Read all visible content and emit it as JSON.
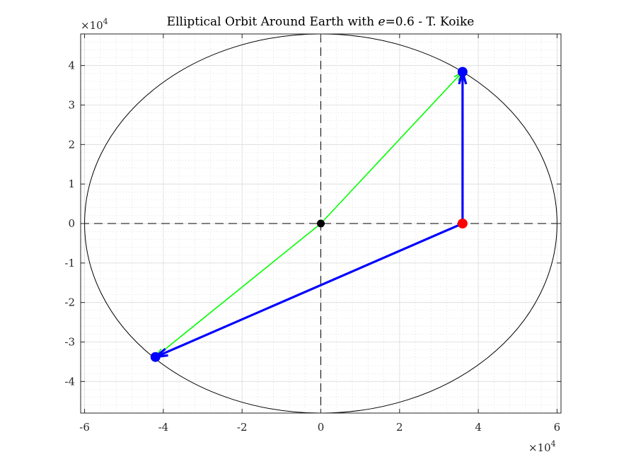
{
  "chart_data": {
    "type": "scatter",
    "title": "Elliptical Orbit Around Earth with e=0.6 - T. Koike",
    "title_parts": {
      "prefix": "Elliptical Orbit Around Earth with ",
      "variable": "e",
      "suffix": "=0.6 - T. Koike"
    },
    "xlabel": "",
    "ylabel": "",
    "x_multiplier": "×10",
    "x_multiplier_exp": "4",
    "y_multiplier": "×10",
    "y_multiplier_exp": "4",
    "xlim": [
      -6.1,
      6.1
    ],
    "ylim": [
      -4.8,
      4.8
    ],
    "x_ticks": [
      -6,
      -4,
      -2,
      0,
      2,
      4,
      6
    ],
    "x_tick_labels": [
      "-6",
      "-4",
      "-2",
      "0",
      "2",
      "4",
      "6"
    ],
    "y_ticks": [
      -4,
      -3,
      -2,
      -1,
      0,
      1,
      2,
      3,
      4
    ],
    "y_tick_labels": [
      "-4",
      "-3",
      "-2",
      "-1",
      "0",
      "1",
      "2",
      "3",
      "4"
    ],
    "grid": true,
    "minor_grid": true,
    "ellipse": {
      "center": [
        0,
        0
      ],
      "semi_major": 6.0,
      "semi_minor": 4.8,
      "color": "#000000"
    },
    "axis_lines": {
      "style": "dashed",
      "color": "#000000"
    },
    "points": [
      {
        "name": "center",
        "x": 0,
        "y": 0,
        "color": "#000000"
      },
      {
        "name": "earth",
        "x": 3.6,
        "y": 0,
        "color": "#ff0000"
      },
      {
        "name": "satellite-upper",
        "x": 3.6,
        "y": 3.84,
        "color": "#0000ff"
      },
      {
        "name": "satellite-lower",
        "x": -4.2,
        "y": -3.38,
        "color": "#0000ff"
      }
    ],
    "vectors": [
      {
        "name": "green-vector-upper",
        "from": [
          0,
          0
        ],
        "to": [
          3.6,
          3.84
        ],
        "color": "#00ff00",
        "width": "thin"
      },
      {
        "name": "green-vector-lower",
        "from": [
          0,
          0
        ],
        "to": [
          -4.2,
          -3.38
        ],
        "color": "#00ff00",
        "width": "thin"
      },
      {
        "name": "blue-vector-upper",
        "from": [
          3.6,
          0
        ],
        "to": [
          3.6,
          3.84
        ],
        "color": "#0000ff",
        "width": "thick"
      },
      {
        "name": "blue-vector-lower",
        "from": [
          3.6,
          0
        ],
        "to": [
          -4.2,
          -3.38
        ],
        "color": "#0000ff",
        "width": "thick"
      }
    ]
  }
}
